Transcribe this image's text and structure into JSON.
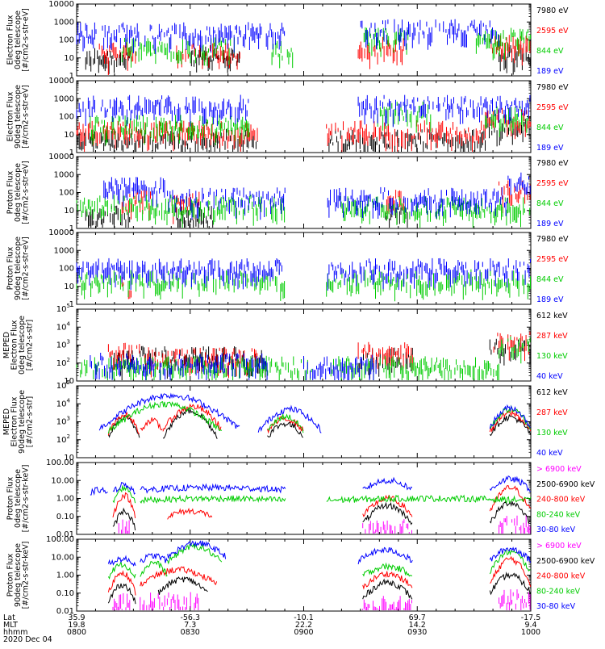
{
  "chart_data": [
    {
      "type": "line",
      "ylabel": [
        "Electron Flux",
        "0deg telescope",
        "[#/cm2-s-str-eV]"
      ],
      "yscale": "log",
      "ylim": [
        1,
        10000
      ],
      "yticks": [
        "1",
        "10",
        "100",
        "1000",
        "10000"
      ],
      "series": [
        {
          "name": "7980 eV",
          "color": "#000000",
          "kind": "lines",
          "segments": [
            [
              0.02,
              0.12,
              18
            ],
            [
              0.25,
              0.36,
              20
            ],
            [
              0.93,
              1.0,
              25
            ]
          ]
        },
        {
          "name": "2595 eV",
          "color": "#ff0000",
          "kind": "lines",
          "segments": [
            [
              0.05,
              0.13,
              30
            ],
            [
              0.22,
              0.36,
              30
            ],
            [
              0.62,
              0.72,
              60
            ],
            [
              0.91,
              1.0,
              80
            ]
          ]
        },
        {
          "name": "844 eV",
          "color": "#00cc00",
          "kind": "lines",
          "segments": [
            [
              0.1,
              0.35,
              60
            ],
            [
              0.43,
              0.48,
              40
            ],
            [
              0.63,
              0.73,
              200
            ],
            [
              0.88,
              1.0,
              200
            ]
          ]
        },
        {
          "name": "189 eV",
          "color": "#0000ff",
          "kind": "lines",
          "segments": [
            [
              0.0,
              0.46,
              400
            ],
            [
              0.62,
              0.93,
              600
            ]
          ]
        }
      ]
    },
    {
      "type": "line",
      "ylabel": [
        "Electron Flux",
        "90deg telescope",
        "[#/cm2-s-str-eV]"
      ],
      "yscale": "log",
      "ylim": [
        1,
        10000
      ],
      "yticks": [
        "1",
        "10",
        "100",
        "1000",
        "10000"
      ],
      "series": [
        {
          "name": "7980 eV",
          "color": "#000000",
          "kind": "lines",
          "segments": [
            [
              0.0,
              0.4,
              8
            ],
            [
              0.55,
              0.9,
              8
            ],
            [
              0.9,
              1.0,
              40
            ]
          ]
        },
        {
          "name": "2595 eV",
          "color": "#ff0000",
          "kind": "lines",
          "segments": [
            [
              0.0,
              0.4,
              25
            ],
            [
              0.55,
              0.9,
              25
            ],
            [
              0.9,
              1.0,
              120
            ]
          ]
        },
        {
          "name": "844 eV",
          "color": "#00cc00",
          "kind": "lines",
          "segments": [
            [
              0.03,
              0.38,
              50
            ],
            [
              0.66,
              0.78,
              300
            ],
            [
              0.9,
              1.0,
              200
            ]
          ]
        },
        {
          "name": "189 eV",
          "color": "#0000ff",
          "kind": "lines",
          "segments": [
            [
              0.0,
              0.38,
              700
            ],
            [
              0.62,
              1.0,
              700
            ]
          ]
        }
      ]
    },
    {
      "type": "line",
      "ylabel": [
        "Proton Flux",
        "0deg telescope",
        "[#/cm2-s-str-eV]"
      ],
      "yscale": "log",
      "ylim": [
        1,
        10000
      ],
      "yticks": [
        "1",
        "10",
        "100",
        "1000",
        "10000"
      ],
      "series": [
        {
          "name": "7980 eV",
          "color": "#000000",
          "kind": "lines",
          "segments": [
            [
              0.02,
              0.12,
              8
            ],
            [
              0.22,
              0.3,
              8
            ],
            [
              0.68,
              0.73,
              10
            ]
          ]
        },
        {
          "name": "2595 eV",
          "color": "#ff0000",
          "kind": "lines",
          "segments": [
            [
              0.1,
              0.17,
              70
            ],
            [
              0.21,
              0.27,
              50
            ],
            [
              0.68,
              0.72,
              60
            ],
            [
              0.93,
              1.0,
              200
            ]
          ]
        },
        {
          "name": "844 eV",
          "color": "#00cc00",
          "kind": "lines",
          "segments": [
            [
              0.0,
              0.46,
              30
            ],
            [
              0.58,
              1.0,
              25
            ]
          ]
        },
        {
          "name": "189 eV",
          "color": "#0000ff",
          "kind": "lines",
          "segments": [
            [
              0.06,
              0.2,
              300
            ],
            [
              0.2,
              0.46,
              80
            ],
            [
              0.55,
              0.95,
              80
            ],
            [
              0.95,
              1.0,
              600
            ]
          ]
        }
      ]
    },
    {
      "type": "line",
      "ylabel": [
        "Proton Flux",
        "90deg telescope",
        "[#/cm2-s-str-eV]"
      ],
      "yscale": "log",
      "ylim": [
        1,
        10000
      ],
      "yticks": [
        "1",
        "10",
        "100",
        "1000",
        "10000"
      ],
      "series": [
        {
          "name": "7980 eV",
          "color": "#000000",
          "kind": "lines",
          "segments": []
        },
        {
          "name": "2595 eV",
          "color": "#ff0000",
          "kind": "lines",
          "segments": [
            [
              0.1,
              0.12,
              15
            ]
          ]
        },
        {
          "name": "844 eV",
          "color": "#00cc00",
          "kind": "lines",
          "segments": [
            [
              0.0,
              0.46,
              40
            ],
            [
              0.55,
              1.0,
              35
            ]
          ]
        },
        {
          "name": "189 eV",
          "color": "#0000ff",
          "kind": "lines",
          "segments": [
            [
              0.0,
              0.46,
              150
            ],
            [
              0.55,
              1.0,
              150
            ]
          ]
        }
      ]
    },
    {
      "type": "line",
      "ylabel": [
        "MEPED",
        "Electron Flux",
        "0deg telescope",
        "[#/cm2-s-str]"
      ],
      "yscale": "log",
      "ylim": [
        10,
        100000
      ],
      "yticks": [
        "10",
        "10^2",
        "10^3",
        "10^4",
        "10^5"
      ],
      "series": [
        {
          "name": "612 keV",
          "color": "#000000",
          "kind": "dense",
          "segments": [
            [
              0.08,
              0.13,
              200
            ],
            [
              0.14,
              0.42,
              350
            ],
            [
              0.62,
              0.74,
              300
            ],
            [
              0.91,
              1.0,
              900
            ]
          ]
        },
        {
          "name": "287 keV",
          "color": "#ff0000",
          "kind": "dense",
          "segments": [
            [
              0.07,
              0.14,
              600
            ],
            [
              0.15,
              0.4,
              300
            ],
            [
              0.62,
              0.74,
              600
            ],
            [
              0.91,
              1.0,
              2500
            ]
          ]
        },
        {
          "name": "130 keV",
          "color": "#00cc00",
          "kind": "dense",
          "segments": [
            [
              0.0,
              0.52,
              100
            ],
            [
              0.56,
              0.93,
              110
            ],
            [
              0.93,
              1.0,
              1500
            ]
          ]
        },
        {
          "name": "40 keV",
          "color": "#0000ff",
          "kind": "dense",
          "segments": [
            [
              0.03,
              0.42,
              150
            ],
            [
              0.5,
              0.66,
              120
            ]
          ]
        }
      ]
    },
    {
      "type": "line",
      "ylabel": [
        "MEPED",
        "Electron Flux",
        "90deg telescope",
        "[#/cm2-s-str]"
      ],
      "yscale": "log",
      "ylim": [
        10,
        100000
      ],
      "yticks": [
        "10",
        "10^2",
        "10^3",
        "10^4",
        "10^5"
      ],
      "series": [
        {
          "name": "612 keV",
          "color": "#000000",
          "kind": "bumps",
          "segments": [
            [
              0.07,
              0.14,
              1600,
              150
            ],
            [
              0.19,
              0.31,
              4000,
              150
            ],
            [
              0.42,
              0.5,
              800,
              150
            ],
            [
              0.91,
              1.0,
              1800,
              200
            ]
          ]
        },
        {
          "name": "287 keV",
          "color": "#ff0000",
          "kind": "bumps",
          "segments": [
            [
              0.07,
              0.14,
              2500,
              200
            ],
            [
              0.14,
              0.19,
              1200,
              300
            ],
            [
              0.19,
              0.32,
              7000,
              400
            ],
            [
              0.42,
              0.5,
              1500,
              300
            ],
            [
              0.91,
              1.0,
              3000,
              300
            ]
          ]
        },
        {
          "name": "130 keV",
          "color": "#00cc00",
          "kind": "bumps",
          "segments": [
            [
              0.07,
              0.32,
              10000,
              300
            ],
            [
              0.42,
              0.5,
              2000,
              300
            ],
            [
              0.91,
              1.0,
              5000,
              400
            ]
          ]
        },
        {
          "name": "40 keV",
          "color": "#0000ff",
          "kind": "bumps",
          "segments": [
            [
              0.05,
              0.36,
              30000,
              400
            ],
            [
              0.4,
              0.54,
              5000,
              300
            ],
            [
              0.91,
              1.0,
              6000,
              500
            ]
          ]
        }
      ]
    },
    {
      "type": "line",
      "ylabel": [
        "Proton Flux",
        "0deg telescope",
        "[#/cm2-s-str-keV]"
      ],
      "yscale": "log",
      "ylim": [
        0.01,
        100
      ],
      "yticks": [
        "0.01",
        "0.10",
        "1.00",
        "10.00",
        "100.00"
      ],
      "series": [
        {
          "name": "> 6900 keV",
          "color": "#ff00ff",
          "kind": "dense",
          "segments": [
            [
              0.09,
              0.12,
              0.03
            ],
            [
              0.63,
              0.74,
              0.03
            ],
            [
              0.93,
              1.0,
              0.06
            ]
          ]
        },
        {
          "name": "2500-6900 keV",
          "color": "#000000",
          "kind": "bumps",
          "segments": [
            [
              0.08,
              0.13,
              0.2,
              0.02
            ],
            [
              0.63,
              0.74,
              0.4,
              0.04
            ],
            [
              0.91,
              1.0,
              0.6,
              0.04
            ]
          ]
        },
        {
          "name": "240-800 keV",
          "color": "#ff0000",
          "kind": "bumps",
          "segments": [
            [
              0.08,
              0.13,
              1.5,
              0.1
            ],
            [
              0.2,
              0.3,
              0.2,
              0.1
            ],
            [
              0.63,
              0.74,
              1.0,
              0.1
            ],
            [
              0.91,
              1.0,
              4,
              0.2
            ]
          ]
        },
        {
          "name": "80-240 keV",
          "color": "#00cc00",
          "kind": "bumps",
          "segments": [
            [
              0.08,
              0.13,
              4,
              0.6
            ],
            [
              0.14,
              0.46,
              1.0,
              0.8
            ],
            [
              0.55,
              1.0,
              1.0,
              0.8
            ]
          ]
        },
        {
          "name": "30-80 keV",
          "color": "#0000ff",
          "kind": "bumps",
          "segments": [
            [
              0.03,
              0.07,
              3,
              2
            ],
            [
              0.08,
              0.13,
              6,
              2
            ],
            [
              0.14,
              0.46,
              4,
              3
            ],
            [
              0.63,
              0.74,
              10,
              3
            ],
            [
              0.91,
              1.0,
              12,
              3
            ]
          ]
        }
      ]
    },
    {
      "type": "line",
      "ylabel": [
        "Proton Flux",
        "90deg telescope",
        "[#/cm2-s-str-keV]"
      ],
      "yscale": "log",
      "ylim": [
        0.01,
        100
      ],
      "yticks": [
        "0.01",
        "0.10",
        "1.00",
        "10.00",
        "100.00"
      ],
      "series": [
        {
          "name": "> 6900 keV",
          "color": "#ff00ff",
          "kind": "dense",
          "segments": [
            [
              0.08,
              0.12,
              0.04
            ],
            [
              0.14,
              0.27,
              0.05
            ],
            [
              0.63,
              0.74,
              0.03
            ],
            [
              0.93,
              1.0,
              0.08
            ]
          ]
        },
        {
          "name": "2500-6900 keV",
          "color": "#000000",
          "kind": "bumps",
          "segments": [
            [
              0.07,
              0.13,
              0.3,
              0.03
            ],
            [
              0.18,
              0.29,
              0.6,
              0.1
            ],
            [
              0.63,
              0.74,
              0.4,
              0.05
            ],
            [
              0.91,
              1.0,
              1.0,
              0.1
            ]
          ]
        },
        {
          "name": "240-800 keV",
          "color": "#ff0000",
          "kind": "bumps",
          "segments": [
            [
              0.07,
              0.13,
              1.5,
              0.1
            ],
            [
              0.14,
              0.31,
              2.0,
              0.3
            ],
            [
              0.63,
              0.74,
              1.2,
              0.2
            ],
            [
              0.91,
              1.0,
              8,
              0.3
            ]
          ]
        },
        {
          "name": "80-240 keV",
          "color": "#00cc00",
          "kind": "bumps",
          "segments": [
            [
              0.07,
              0.13,
              4,
              0.8
            ],
            [
              0.14,
              0.2,
              5,
              1
            ],
            [
              0.2,
              0.32,
              40,
              5
            ],
            [
              0.63,
              0.74,
              3,
              1
            ],
            [
              0.91,
              1.0,
              20,
              1.5
            ]
          ]
        },
        {
          "name": "30-80 keV",
          "color": "#0000ff",
          "kind": "bumps",
          "segments": [
            [
              0.07,
              0.13,
              8,
              4
            ],
            [
              0.14,
              0.2,
              12,
              6
            ],
            [
              0.2,
              0.33,
              60,
              10
            ],
            [
              0.62,
              0.74,
              25,
              6
            ],
            [
              0.91,
              1.0,
              30,
              6
            ]
          ]
        }
      ]
    }
  ],
  "footer": {
    "labels": [
      "Lat",
      "MLT",
      "hhmm",
      "2020 Dec 04"
    ],
    "columns": [
      {
        "lat": "35.9",
        "mlt": "19.8",
        "hhmm": "0800"
      },
      {
        "lat": "-56.3",
        "mlt": "7.3",
        "hhmm": "0830"
      },
      {
        "lat": "-10.1",
        "mlt": "22.2",
        "hhmm": "0900"
      },
      {
        "lat": "69.7",
        "mlt": "14.2",
        "hhmm": "0930"
      },
      {
        "lat": "-17.5",
        "mlt": "9.4",
        "hhmm": "1000"
      }
    ]
  }
}
